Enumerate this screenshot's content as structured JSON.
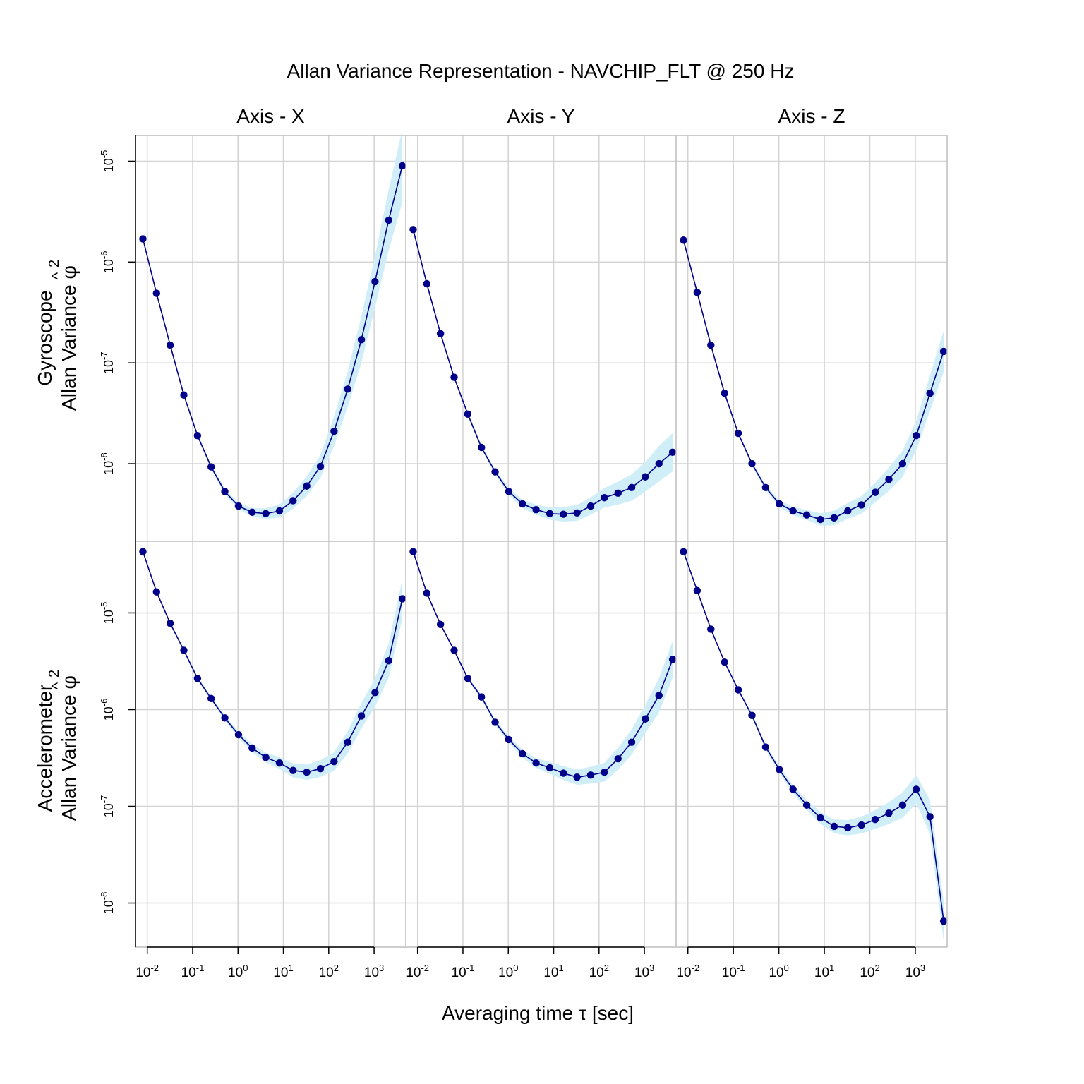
{
  "chart_data": {
    "type": "line",
    "title": "Allan Variance Representation - NAVCHIP_FLT @ 250 Hz",
    "xlabel": "Averaging time τ [sec]",
    "x_scale": "log10",
    "y_scale": "log10",
    "xlim": [
      0.0055,
      5000
    ],
    "x_ticks": [
      0.01,
      0.1,
      1,
      10,
      100,
      1000
    ],
    "x_tick_labels": [
      {
        "base": "10",
        "exp": "-2"
      },
      {
        "base": "10",
        "exp": "-1"
      },
      {
        "base": "10",
        "exp": "0"
      },
      {
        "base": "10",
        "exp": "1"
      },
      {
        "base": "10",
        "exp": "2"
      },
      {
        "base": "10",
        "exp": "3"
      }
    ],
    "columns": [
      "Axis - X",
      "Axis - Y",
      "Axis - Z"
    ],
    "rows": [
      {
        "name": "Gyroscope",
        "ylabel_line1": "Gyroscope",
        "ylabel_line2": "Allan Variance",
        "ylabel_symbol": "φ",
        "ylabel_hat": "^",
        "ylabel_sup": "2",
        "ylim": [
          1.7e-09,
          1.8e-05
        ],
        "y_ticks": [
          1e-08,
          1e-07,
          1e-06,
          1e-05
        ],
        "y_tick_labels": [
          {
            "base": "10",
            "exp": "-8"
          },
          {
            "base": "10",
            "exp": "-7"
          },
          {
            "base": "10",
            "exp": "-6"
          },
          {
            "base": "10",
            "exp": "-5"
          }
        ]
      },
      {
        "name": "Accelerometer",
        "ylabel_line1": "Accelerometer",
        "ylabel_line2": "Allan Variance",
        "ylabel_symbol": "φ",
        "ylabel_hat": "^",
        "ylabel_sup": "2",
        "ylim": [
          3.5e-09,
          5.5e-05
        ],
        "y_ticks": [
          1e-08,
          1e-07,
          1e-06,
          1e-05
        ],
        "y_tick_labels": [
          {
            "base": "10",
            "exp": "-8"
          },
          {
            "base": "10",
            "exp": "-7"
          },
          {
            "base": "10",
            "exp": "-6"
          },
          {
            "base": "10",
            "exp": "-5"
          }
        ]
      }
    ],
    "grid": true,
    "legend": "none",
    "colors": {
      "line": "#00008b",
      "point": "#00008b",
      "ci_band": "#cfeef8",
      "grid": "#d3d3d3",
      "frame": "#bebebe"
    },
    "x": [
      0.008,
      0.016,
      0.032,
      0.064,
      0.128,
      0.256,
      0.512,
      1.024,
      2.048,
      4.096,
      8.192,
      16.384,
      32.768,
      65.536,
      131.072,
      262.144,
      524.288,
      1048.576,
      2097.152,
      4194.304
    ],
    "panels": [
      {
        "row": "Gyroscope",
        "column": "Axis - X",
        "x_count": 20,
        "values": [
          1.7e-06,
          4.9e-07,
          1.5e-07,
          4.8e-08,
          1.9e-08,
          9.3e-09,
          5.3e-09,
          3.8e-09,
          3.3e-09,
          3.2e-09,
          3.4e-09,
          4.3e-09,
          6e-09,
          9.4e-09,
          2.1e-08,
          5.5e-08,
          1.7e-07,
          6.4e-07,
          2.6e-06,
          9e-06
        ],
        "ci_rel": [
          1.02,
          1.02,
          1.02,
          1.03,
          1.04,
          1.05,
          1.06,
          1.08,
          1.1,
          1.13,
          1.16,
          1.2,
          1.25,
          1.3,
          1.4,
          1.5,
          1.7,
          1.8,
          2.0,
          2.3
        ]
      },
      {
        "row": "Gyroscope",
        "column": "Axis - Y",
        "x_count": 20,
        "values": [
          2.1e-06,
          6.1e-07,
          1.95e-07,
          7.2e-08,
          3.1e-08,
          1.45e-08,
          8.3e-09,
          5.3e-09,
          4e-09,
          3.5e-09,
          3.2e-09,
          3.15e-09,
          3.25e-09,
          3.8e-09,
          4.6e-09,
          5.1e-09,
          5.8e-09,
          7.4e-09,
          1e-08,
          1.3e-08
        ],
        "ci_rel": [
          1.02,
          1.02,
          1.02,
          1.03,
          1.04,
          1.05,
          1.06,
          1.08,
          1.1,
          1.12,
          1.15,
          1.18,
          1.2,
          1.22,
          1.25,
          1.3,
          1.35,
          1.4,
          1.5,
          1.55
        ]
      },
      {
        "row": "Gyroscope",
        "column": "Axis - Z",
        "x_count": 20,
        "values": [
          1.65e-06,
          5e-07,
          1.5e-07,
          5e-08,
          2e-08,
          1e-08,
          5.8e-09,
          4e-09,
          3.4e-09,
          3.1e-09,
          2.8e-09,
          2.9e-09,
          3.4e-09,
          3.9e-09,
          5.2e-09,
          7e-09,
          1e-08,
          1.9e-08,
          5e-08,
          1.3e-07
        ],
        "ci_rel": [
          1.02,
          1.02,
          1.02,
          1.03,
          1.04,
          1.05,
          1.06,
          1.08,
          1.1,
          1.12,
          1.15,
          1.18,
          1.2,
          1.22,
          1.25,
          1.3,
          1.35,
          1.4,
          1.5,
          1.6
        ]
      },
      {
        "row": "Accelerometer",
        "column": "Axis - X",
        "x_count": 20,
        "values": [
          4.3e-05,
          1.65e-05,
          7.8e-06,
          4.1e-06,
          2.1e-06,
          1.3e-06,
          8.2e-07,
          5.5e-07,
          4e-07,
          3.2e-07,
          2.8e-07,
          2.35e-07,
          2.25e-07,
          2.45e-07,
          2.9e-07,
          4.6e-07,
          8.6e-07,
          1.5e-06,
          3.2e-06,
          1.4e-05
        ],
        "ci_rel": [
          1.02,
          1.02,
          1.02,
          1.03,
          1.04,
          1.05,
          1.06,
          1.08,
          1.1,
          1.12,
          1.15,
          1.18,
          1.2,
          1.22,
          1.25,
          1.3,
          1.35,
          1.4,
          1.5,
          1.6
        ]
      },
      {
        "row": "Accelerometer",
        "column": "Axis - Y",
        "x_count": 20,
        "values": [
          4.3e-05,
          1.6e-05,
          7.6e-06,
          4.1e-06,
          2.1e-06,
          1.35e-06,
          7.4e-07,
          4.9e-07,
          3.5e-07,
          2.8e-07,
          2.5e-07,
          2.2e-07,
          2e-07,
          2.1e-07,
          2.25e-07,
          3.1e-07,
          4.6e-07,
          8e-07,
          1.4e-06,
          3.3e-06
        ],
        "ci_rel": [
          1.02,
          1.02,
          1.02,
          1.03,
          1.04,
          1.05,
          1.06,
          1.08,
          1.1,
          1.12,
          1.15,
          1.18,
          1.2,
          1.22,
          1.25,
          1.3,
          1.35,
          1.4,
          1.5,
          1.55
        ]
      },
      {
        "row": "Accelerometer",
        "column": "Axis - Z",
        "x_count": 20,
        "values": [
          4.3e-05,
          1.7e-05,
          6.8e-06,
          3.1e-06,
          1.6e-06,
          8.7e-07,
          4.1e-07,
          2.4e-07,
          1.5e-07,
          1.03e-07,
          7.6e-08,
          6.2e-08,
          6e-08,
          6.4e-08,
          7.3e-08,
          8.5e-08,
          1.03e-07,
          1.5e-07,
          7.8e-08,
          6.5e-09
        ],
        "ci_rel": [
          1.02,
          1.02,
          1.02,
          1.03,
          1.04,
          1.05,
          1.06,
          1.08,
          1.1,
          1.12,
          1.15,
          1.18,
          1.2,
          1.22,
          1.25,
          1.3,
          1.35,
          1.4,
          1.5,
          1.6
        ]
      }
    ]
  }
}
